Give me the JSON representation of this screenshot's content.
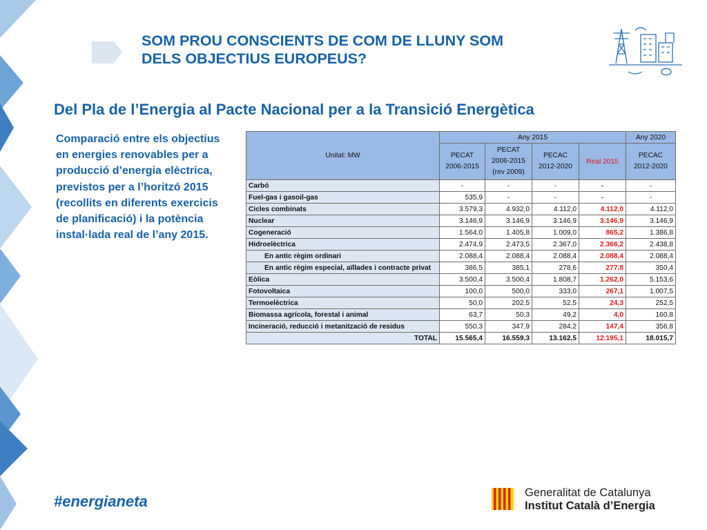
{
  "header": {
    "title_line1": "SOM PROU CONSCIENTS DE COM DE LLUNY SOM",
    "title_line2": "DELS OBJECTIUS EUROPEUS?"
  },
  "subtitle": "Del Pla de l’Energia al Pacte Nacional per a la Transició Energètica",
  "description": "Comparació entre els objectius en energies renovables per a producció d’energia elèctrica, previstos per a l’horitzó 2015 (recollits en diferents exercicis de planificació) i la potència instal·lada real de l’any 2015.",
  "table": {
    "unit_label": "Unitat: MW",
    "group_headers": [
      "Any 2015",
      "Any 2020"
    ],
    "columns": [
      {
        "line1": "PECAT",
        "line2": "2006-2015",
        "line3": ""
      },
      {
        "line1": "PECAT",
        "line2": "2006-2015",
        "line3": "(rev 2009)"
      },
      {
        "line1": "PECAC",
        "line2": "2012-2020",
        "line3": ""
      },
      {
        "line1": "Real 2015",
        "line2": "",
        "line3": ""
      },
      {
        "line1": "PECAC",
        "line2": "2012-2020",
        "line3": ""
      }
    ],
    "rows": [
      {
        "label": "Carbó",
        "values": [
          "-",
          "-",
          "-",
          "-",
          "-"
        ]
      },
      {
        "label": "Fuel-gas i gasoil-gas",
        "values": [
          "535,9",
          "-",
          "-",
          "-",
          "-"
        ]
      },
      {
        "label": "Cicles combinats",
        "values": [
          "3.579,3",
          "4.932,0",
          "4.112,0",
          "4.112,0",
          "4.112,0"
        ]
      },
      {
        "label": "Nuclear",
        "values": [
          "3.146,9",
          "3.146,9",
          "3.146,9",
          "3.146,9",
          "3.146,9"
        ]
      },
      {
        "label": "Cogeneració",
        "values": [
          "1.564,0",
          "1.405,8",
          "1.009,0",
          "865,2",
          "1.386,8"
        ]
      },
      {
        "label": "Hidroelèctrica",
        "values": [
          "2.474,9",
          "2.473,5",
          "2.367,0",
          "2.366,2",
          "2.438,8"
        ]
      },
      {
        "label": "En antic règim ordinari",
        "values": [
          "2.088,4",
          "2.088,4",
          "2.088,4",
          "2.088,4",
          "2.088,4"
        ]
      },
      {
        "label": "En antic règim especial, aïllades i contracte privat",
        "values": [
          "386,5",
          "385,1",
          "278,6",
          "277,8",
          "350,4"
        ]
      },
      {
        "label": "Eòlica",
        "values": [
          "3.500,4",
          "3.500,4",
          "1.808,7",
          "1.262,0",
          "5.153,6"
        ]
      },
      {
        "label": "Fotovoltaica",
        "values": [
          "100,0",
          "500,0",
          "333,0",
          "267,1",
          "1.007,5"
        ]
      },
      {
        "label": "Termoelèctrica",
        "values": [
          "50,0",
          "202,5",
          "52,5",
          "24,3",
          "252,5"
        ]
      },
      {
        "label": "Biomassa agrícola, forestal i animal",
        "values": [
          "63,7",
          "50,3",
          "49,2",
          "4,0",
          "160,8"
        ]
      },
      {
        "label": "Incineració, reducció i metanització de residus",
        "values": [
          "550,3",
          "347,9",
          "284,2",
          "147,4",
          "356,8"
        ]
      }
    ],
    "total": {
      "label": "TOTAL",
      "values": [
        "15.565,4",
        "16.559,3",
        "13.162,5",
        "12.195,1",
        "18.015,7"
      ]
    }
  },
  "footer": {
    "hashtag": "#energianeta",
    "org_line1": "Generalitat de Catalunya",
    "org_line2": "Institut Català d’Energia"
  },
  "colors": {
    "brand_blue": "#1761a8",
    "header_fill": "#9ab9e5",
    "label_fill": "#dce6f2",
    "real_red": "#e0191a"
  },
  "icons": [
    "energy-infrastructure-icon",
    "generalitat-logo-icon",
    "slide-arrow-icon"
  ]
}
